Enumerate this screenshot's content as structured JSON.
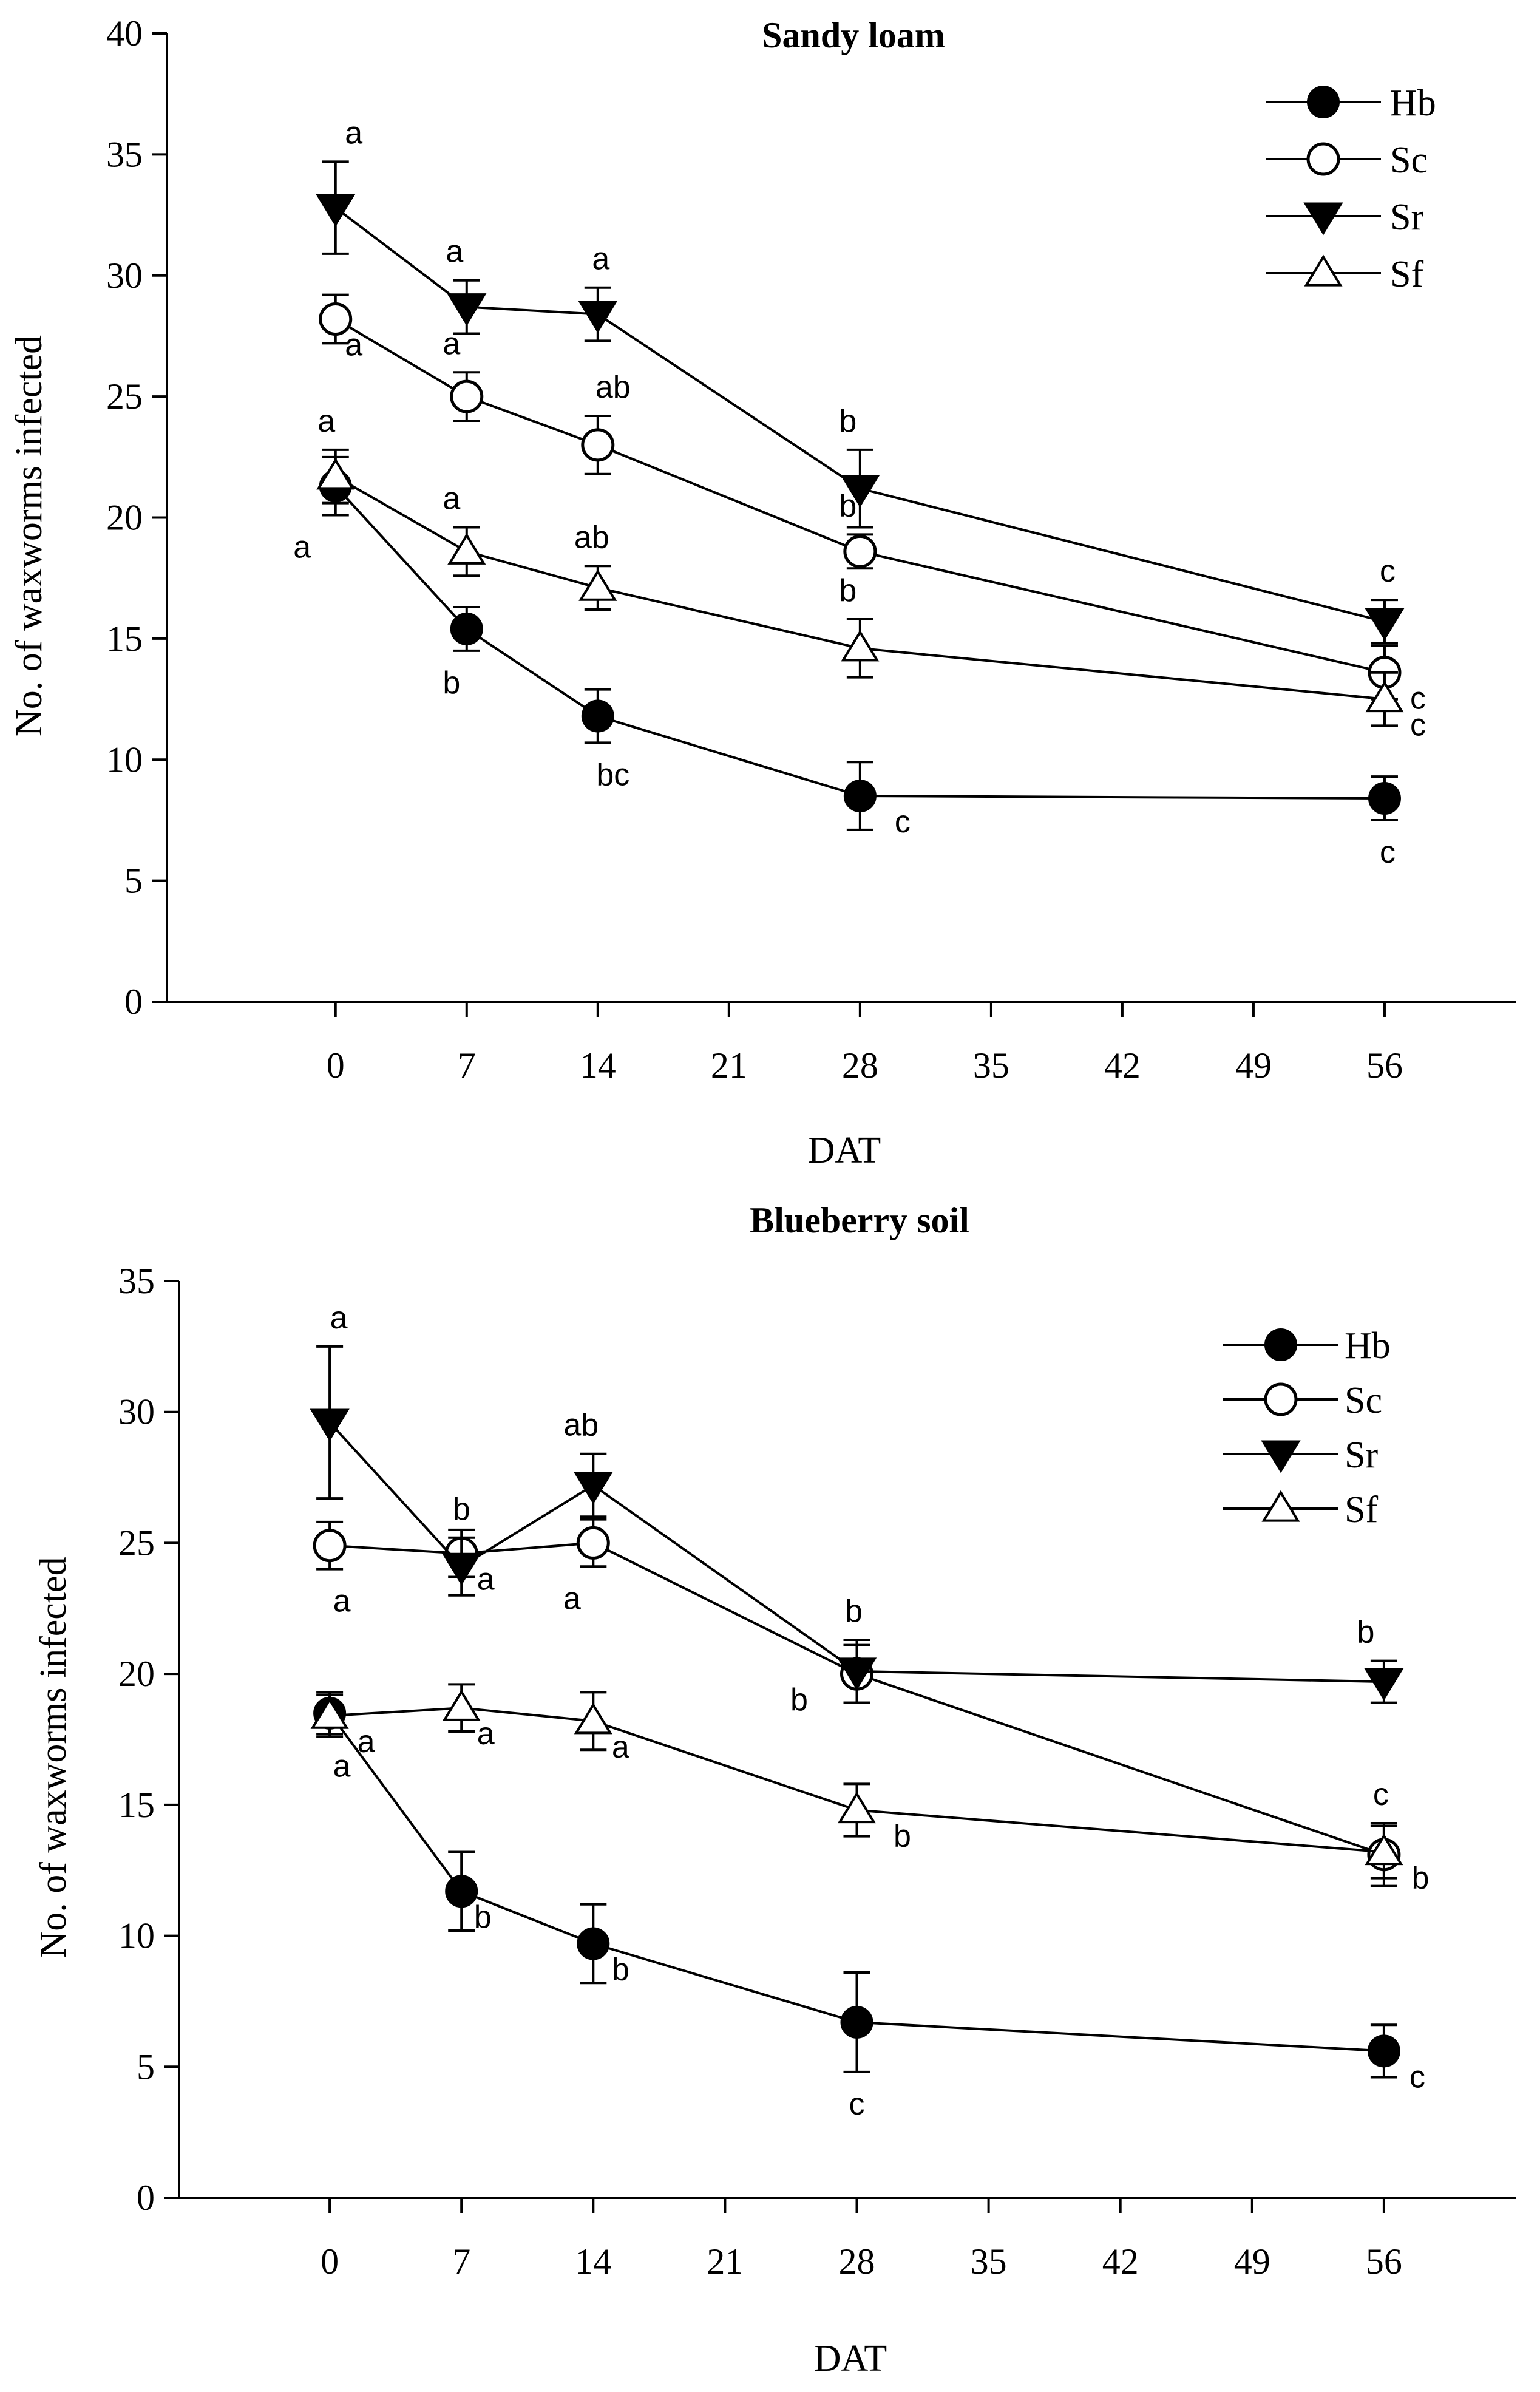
{
  "chart_data": [
    {
      "type": "line",
      "title": "Sandy loam",
      "xlabel": "DAT",
      "ylabel": "No. of waxworms infected",
      "xlim": [
        -9,
        63
      ],
      "ylim": [
        0,
        40
      ],
      "xticks": [
        0,
        7,
        14,
        21,
        28,
        35,
        42,
        49,
        56
      ],
      "yticks": [
        0,
        5,
        10,
        15,
        20,
        25,
        30,
        35,
        40
      ],
      "x": [
        0,
        7,
        14,
        28,
        56
      ],
      "series": [
        {
          "name": "Hb",
          "marker": "filled-circle",
          "values": [
            21.3,
            15.4,
            11.8,
            8.5,
            8.4
          ],
          "errors": [
            1.2,
            0.9,
            1.1,
            1.4,
            0.9
          ],
          "letters": [
            "a",
            "b",
            "bc",
            "c",
            "c"
          ]
        },
        {
          "name": "Sc",
          "marker": "open-circle",
          "values": [
            28.2,
            25.0,
            23.0,
            18.6,
            13.6
          ],
          "errors": [
            1.0,
            1.0,
            1.2,
            0.7,
            1.1
          ],
          "letters": [
            "a",
            "a",
            "ab",
            "b",
            "c"
          ]
        },
        {
          "name": "Sr",
          "marker": "filled-triangle-down",
          "values": [
            32.8,
            28.7,
            28.4,
            21.2,
            15.7
          ],
          "errors": [
            1.9,
            1.1,
            1.1,
            1.6,
            0.9
          ],
          "letters": [
            "a",
            "a",
            "a",
            "b",
            "c"
          ]
        },
        {
          "name": "Sf",
          "marker": "open-triangle-up",
          "values": [
            21.7,
            18.6,
            17.1,
            14.6,
            12.5
          ],
          "errors": [
            1.1,
            1.0,
            0.9,
            1.2,
            1.1
          ],
          "letters": [
            "a",
            "a",
            "ab",
            "b",
            "c"
          ]
        }
      ],
      "legend_position": "top-right",
      "grid": false
    },
    {
      "type": "line",
      "title": "Blueberry soil",
      "xlabel": "DAT",
      "ylabel": "No. of waxworms infected",
      "xlim": [
        -8,
        63
      ],
      "ylim": [
        0,
        35
      ],
      "xticks": [
        0,
        7,
        14,
        21,
        28,
        35,
        42,
        49,
        56
      ],
      "yticks": [
        0,
        5,
        10,
        15,
        20,
        25,
        30,
        35
      ],
      "x": [
        0,
        7,
        14,
        28,
        56
      ],
      "series": [
        {
          "name": "Hb",
          "marker": "filled-circle",
          "values": [
            18.5,
            11.7,
            9.7,
            6.7,
            5.6
          ],
          "errors": [
            0.8,
            1.5,
            1.5,
            1.9,
            1.0
          ],
          "letters": [
            "a",
            "b",
            "b",
            "c",
            "c"
          ]
        },
        {
          "name": "Sc",
          "marker": "open-circle",
          "values": [
            24.9,
            24.6,
            25.0,
            20.0,
            13.1
          ],
          "errors": [
            0.9,
            0.9,
            0.9,
            1.1,
            1.2
          ],
          "letters": [
            "a",
            "a",
            "a",
            "b",
            "c"
          ]
        },
        {
          "name": "Sr",
          "marker": "filled-triangle-down",
          "values": [
            29.6,
            24.1,
            27.2,
            20.1,
            19.7
          ],
          "errors": [
            2.9,
            1.1,
            1.2,
            1.2,
            0.8
          ],
          "letters": [
            "a",
            "b",
            "ab",
            "b",
            "b"
          ]
        },
        {
          "name": "Sf",
          "marker": "open-triangle-up",
          "values": [
            18.4,
            18.7,
            18.2,
            14.8,
            13.2
          ],
          "errors": [
            0.8,
            0.9,
            1.1,
            1.0,
            1.0
          ],
          "letters": [
            "a",
            "a",
            "a",
            "b",
            "b"
          ]
        }
      ],
      "legend_position": "top-right",
      "grid": false
    }
  ]
}
